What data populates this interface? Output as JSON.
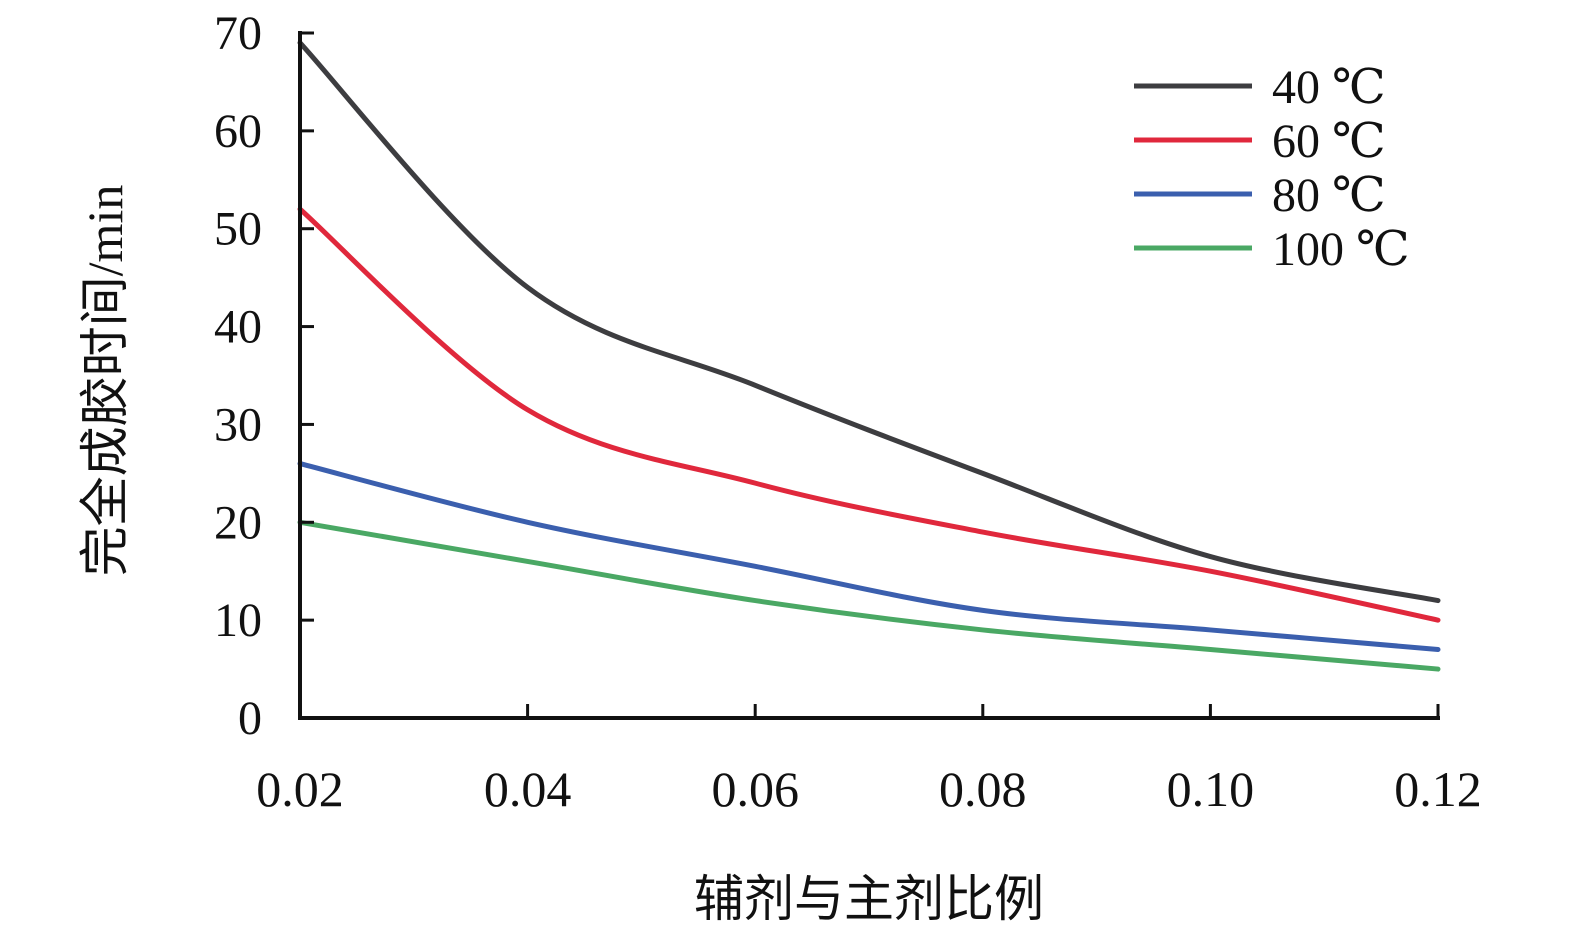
{
  "chart_data": {
    "type": "line",
    "xlabel": "辅剂与主剂比例",
    "ylabel": "完全成胶时间/min",
    "x": [
      0.02,
      0.04,
      0.06,
      0.08,
      0.1,
      0.12
    ],
    "xticks": [
      "0.02",
      "0.04",
      "0.06",
      "0.08",
      "0.10",
      "0.12"
    ],
    "yticks": [
      "0",
      "10",
      "20",
      "30",
      "40",
      "50",
      "60",
      "70"
    ],
    "xlim": [
      0.02,
      0.12
    ],
    "ylim": [
      0,
      70
    ],
    "grid": false,
    "legend_position": "top-right",
    "series": [
      {
        "name": "40 ℃",
        "color": "#3d3d40",
        "values": [
          69,
          44,
          34,
          25,
          16.5,
          12
        ]
      },
      {
        "name": "60 ℃",
        "color": "#e0283c",
        "values": [
          52,
          31.5,
          24,
          19,
          15,
          10
        ]
      },
      {
        "name": "80 ℃",
        "color": "#3b5fae",
        "values": [
          26,
          20,
          15.5,
          11,
          9,
          7
        ]
      },
      {
        "name": "100 ℃",
        "color": "#4aa864",
        "values": [
          20,
          16,
          12,
          9,
          7,
          5
        ]
      }
    ]
  }
}
